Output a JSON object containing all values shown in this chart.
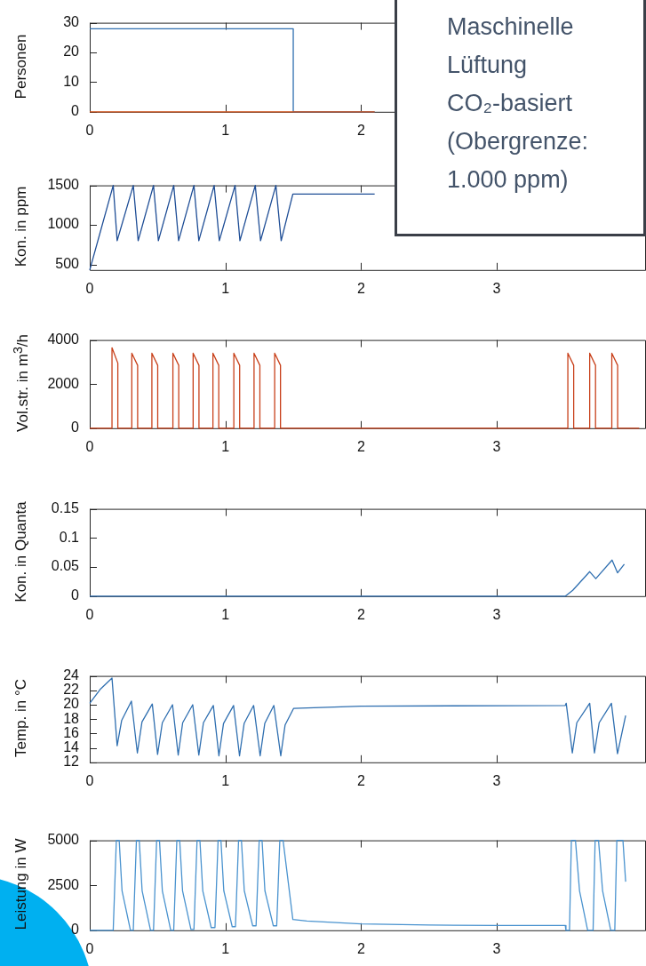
{
  "chart_data": [
    {
      "type": "line",
      "ylabel": "Personen",
      "xlim": [
        0,
        4.1
      ],
      "ylim": [
        0,
        30
      ],
      "xticks": [
        0,
        1,
        2
      ],
      "yticks": [
        0,
        10,
        20,
        30
      ],
      "annotations": [
        "Maschinelle Lüftung CO₂-basiert (Obergrenze: 1.000 ppm)"
      ],
      "series": [
        {
          "color": "#d95319",
          "x": [
            0,
            2.1
          ],
          "values": [
            0,
            0
          ]
        },
        {
          "color": "#2f6fb0",
          "x": [
            0,
            1.5,
            1.5,
            2.1
          ],
          "values": [
            28,
            28,
            0,
            0
          ]
        }
      ]
    },
    {
      "type": "line",
      "ylabel": "Kon. in ppm",
      "xlim": [
        0,
        4.1
      ],
      "ylim": [
        430,
        1500
      ],
      "xticks": [
        0,
        1,
        2,
        3
      ],
      "yticks": [
        500,
        1000,
        1500
      ],
      "series": [
        {
          "color": "#1f4e96",
          "x": [
            0,
            0.173,
            0.202,
            0.321,
            0.357,
            0.47,
            0.506,
            0.619,
            0.655,
            0.768,
            0.804,
            0.917,
            0.955,
            1.071,
            1.107,
            1.22,
            1.259,
            1.372,
            1.411,
            1.497,
            2.1
          ],
          "values": [
            430,
            1500,
            800,
            1500,
            800,
            1500,
            800,
            1500,
            800,
            1500,
            800,
            1500,
            800,
            1500,
            800,
            1500,
            800,
            1500,
            800,
            1390,
            1390
          ]
        }
      ]
    },
    {
      "type": "line",
      "ylabel": "Vol.str. in m$^{3}$/h",
      "xlim": [
        0,
        4.1
      ],
      "ylim": [
        0,
        4000
      ],
      "xticks": [
        0,
        1,
        2,
        3
      ],
      "yticks": [
        0,
        2000,
        4000
      ],
      "series": [
        {
          "color": "#c8401a",
          "x": [
            0,
            0.164,
            0.164,
            0.207,
            0.207,
            0.31,
            0.31,
            0.353,
            0.353,
            0.458,
            0.458,
            0.501,
            0.501,
            0.613,
            0.613,
            0.656,
            0.656,
            0.762,
            0.762,
            0.805,
            0.805,
            0.908,
            0.908,
            0.951,
            0.951,
            1.062,
            1.062,
            1.105,
            1.105,
            1.211,
            1.211,
            1.254,
            1.254,
            1.363,
            1.363,
            1.406,
            1.406,
            3.524,
            3.524,
            3.567,
            3.567,
            3.685,
            3.685,
            3.728,
            3.728,
            3.848,
            3.848,
            3.891,
            3.891,
            4.05
          ],
          "values": [
            0,
            0,
            3650,
            2950,
            0,
            0,
            3400,
            2850,
            0,
            0,
            3400,
            2850,
            0,
            0,
            3400,
            2850,
            0,
            0,
            3400,
            2850,
            0,
            0,
            3400,
            2850,
            0,
            0,
            3400,
            2850,
            0,
            0,
            3400,
            2850,
            0,
            0,
            3400,
            2850,
            0,
            0,
            3400,
            2850,
            0,
            0,
            3400,
            2850,
            0,
            0,
            3400,
            2850,
            0,
            0
          ]
        }
      ]
    },
    {
      "type": "line",
      "ylabel": "Kon. in Quanta",
      "xlim": [
        0,
        4.1
      ],
      "ylim": [
        0,
        0.15
      ],
      "xticks": [
        0,
        1,
        2,
        3
      ],
      "yticks": [
        0,
        0.05,
        0.1,
        0.15
      ],
      "series": [
        {
          "color": "#2f6fb0",
          "x": [
            0,
            3.506,
            3.56,
            3.685,
            3.73,
            3.85,
            3.89,
            3.94
          ],
          "values": [
            0,
            0,
            0.01,
            0.042,
            0.03,
            0.062,
            0.04,
            0.055
          ]
        }
      ]
    },
    {
      "type": "line",
      "ylabel": "Temp.  in °C",
      "xlim": [
        0,
        4.1
      ],
      "ylim": [
        12,
        24
      ],
      "xticks": [
        0,
        1,
        2,
        3
      ],
      "yticks": [
        12,
        14,
        16,
        18,
        20,
        22,
        24
      ],
      "series": [
        {
          "color": "#2f6fb0",
          "x": [
            0,
            0.08,
            0.164,
            0.202,
            0.235,
            0.307,
            0.351,
            0.385,
            0.461,
            0.5,
            0.535,
            0.61,
            0.652,
            0.685,
            0.759,
            0.804,
            0.838,
            0.911,
            0.952,
            0.986,
            1.06,
            1.104,
            1.138,
            1.208,
            1.256,
            1.29,
            1.357,
            1.408,
            1.44,
            1.503,
            2.0,
            3.505,
            3.512,
            3.557,
            3.59,
            3.685,
            3.72,
            3.755,
            3.845,
            3.89,
            3.95
          ],
          "values": [
            20.2,
            22.2,
            23.7,
            14.3,
            17.8,
            20.5,
            13.3,
            17.6,
            20.1,
            13.1,
            17.5,
            20.0,
            13.0,
            17.5,
            20.0,
            13.0,
            17.5,
            19.9,
            12.9,
            17.4,
            19.9,
            12.9,
            17.4,
            19.9,
            12.9,
            17.4,
            19.9,
            12.9,
            17.2,
            19.5,
            19.8,
            19.9,
            20.2,
            13.3,
            17.5,
            20.2,
            13.3,
            17.5,
            20.2,
            13.2,
            18.5
          ]
        }
      ]
    },
    {
      "type": "line",
      "ylabel": "Leistung in W",
      "xlim": [
        0,
        4.1
      ],
      "ylim": [
        0,
        5000
      ],
      "xticks": [
        0,
        1,
        2,
        3
      ],
      "yticks": [
        0,
        2500,
        5000
      ],
      "series": [
        {
          "color": "#4a93cf",
          "x": [
            0,
            0.173,
            0.196,
            0.217,
            0.238,
            0.3,
            0.321,
            0.344,
            0.365,
            0.386,
            0.448,
            0.47,
            0.493,
            0.514,
            0.535,
            0.597,
            0.619,
            0.642,
            0.663,
            0.684,
            0.746,
            0.768,
            0.791,
            0.812,
            0.833,
            0.895,
            0.923,
            0.946,
            0.967,
            0.988,
            1.05,
            1.074,
            1.097,
            1.118,
            1.139,
            1.201,
            1.226,
            1.249,
            1.27,
            1.291,
            1.353,
            1.378,
            1.401,
            1.425,
            1.497,
            1.6,
            2.0,
            2.5,
            3.0,
            3.505,
            3.51,
            3.536,
            3.55,
            3.58,
            3.61,
            3.67,
            3.71,
            3.725,
            3.75,
            3.78,
            3.84,
            3.87,
            3.885,
            3.93,
            3.95
          ],
          "values": [
            0,
            0,
            5000,
            5000,
            2200,
            0,
            0,
            5000,
            5000,
            2200,
            0,
            0,
            5000,
            5000,
            2200,
            0,
            0,
            5000,
            5000,
            2200,
            50,
            50,
            5000,
            5000,
            2200,
            150,
            150,
            5000,
            5000,
            2200,
            200,
            200,
            5000,
            5000,
            2200,
            250,
            250,
            5000,
            5000,
            2200,
            250,
            250,
            5000,
            5000,
            600,
            520,
            350,
            290,
            270,
            270,
            0,
            0,
            5000,
            5000,
            2200,
            0,
            0,
            5000,
            5000,
            2200,
            0,
            0,
            5000,
            5000,
            2700
          ]
        }
      ]
    }
  ]
}
